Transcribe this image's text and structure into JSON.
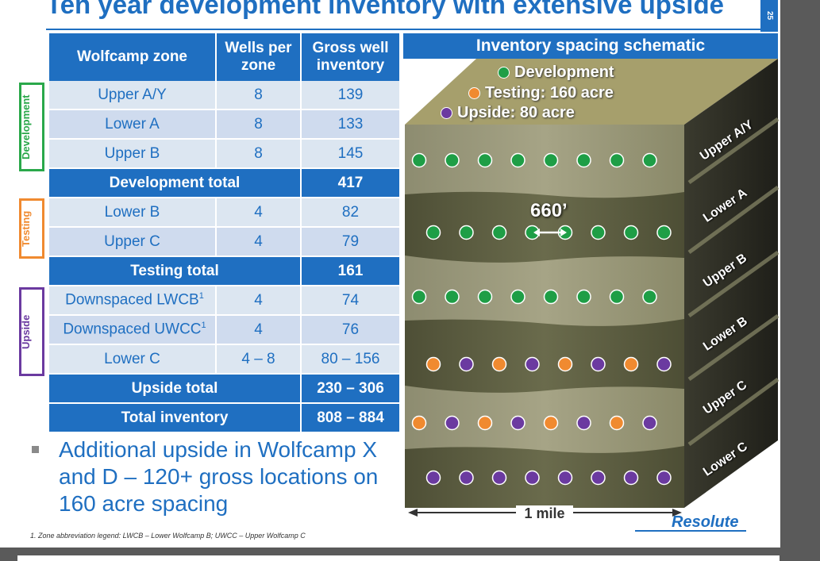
{
  "title": "Ten year development inventory with extensive upside",
  "page_number": "25",
  "table": {
    "headers": [
      "Wolfcamp zone",
      "Wells per zone",
      "Gross well inventory"
    ],
    "groups": [
      {
        "label": "Development",
        "color": "#2aa84a",
        "rows": [
          [
            "Upper A/Y",
            "8",
            "139"
          ],
          [
            "Lower A",
            "8",
            "133"
          ],
          [
            "Upper B",
            "8",
            "145"
          ]
        ],
        "total": {
          "label": "Development total",
          "value": "417"
        }
      },
      {
        "label": "Testing",
        "color": "#f08a30",
        "rows": [
          [
            "Lower B",
            "4",
            "82"
          ],
          [
            "Upper C",
            "4",
            "79"
          ]
        ],
        "total": {
          "label": "Testing total",
          "value": "161"
        }
      },
      {
        "label": "Upside",
        "color": "#6b3aa0",
        "rows": [
          [
            "Downspaced LWCB",
            "4",
            "74"
          ],
          [
            "Downspaced UWCC",
            "4",
            "76"
          ],
          [
            "Lower C",
            "4 – 8",
            "80 – 156"
          ]
        ],
        "total": {
          "label": "Upside total",
          "value": "230 – 306"
        }
      }
    ],
    "grand_total": {
      "label": "Total inventory",
      "value": "808 – 884"
    },
    "footnote_marker": "1"
  },
  "bullet": "Additional upside in Wolfcamp X and D –  120+ gross locations on 160 acre spacing",
  "footnote": "1.   Zone abbreviation legend: LWCB – Lower Wolfcamp B; UWCC – Upper Wolfcamp C",
  "logo": "Resolute",
  "schematic": {
    "title": "Inventory spacing schematic",
    "legend": [
      {
        "label": "Development",
        "color": "#1e9e46"
      },
      {
        "label": "Testing: 160 acre",
        "color": "#f08a30"
      },
      {
        "label": "Upside: 80 acre",
        "color": "#6b3aa0"
      }
    ],
    "zones": [
      "Upper A/Y",
      "Lower A",
      "Upper B",
      "Lower B",
      "Upper C",
      "Lower C"
    ],
    "dot_rows": [
      [
        "D",
        "D",
        "D",
        "D",
        "D",
        "D",
        "D",
        "D"
      ],
      [
        "D",
        "D",
        "D",
        "D",
        "D",
        "D",
        "D",
        "D"
      ],
      [
        "D",
        "D",
        "D",
        "D",
        "D",
        "D",
        "D",
        "D"
      ],
      [
        "T",
        "U",
        "T",
        "U",
        "T",
        "U",
        "T",
        "U"
      ],
      [
        "T",
        "U",
        "T",
        "U",
        "T",
        "U",
        "T",
        "U"
      ],
      [
        "U",
        "U",
        "U",
        "U",
        "U",
        "U",
        "U",
        "U"
      ]
    ],
    "spacing_label": "660’",
    "scale_label": "1 mile",
    "colors": {
      "D": "#1e9e46",
      "T": "#f08a30",
      "U": "#6b3aa0"
    }
  }
}
